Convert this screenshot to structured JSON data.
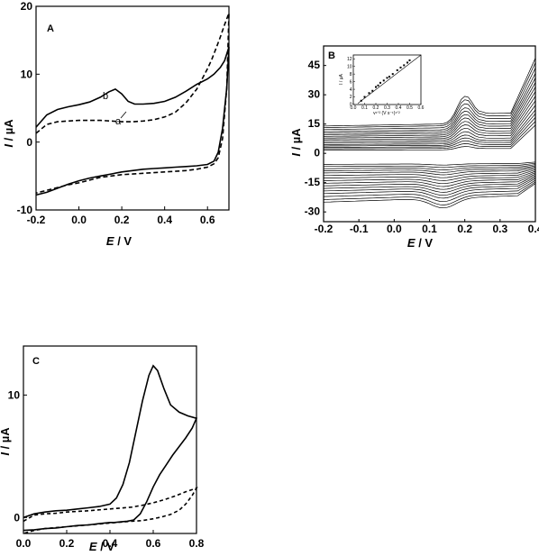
{
  "panels": [
    {
      "label": "A",
      "type": "line",
      "xlabel_pre": "E",
      "xlabel_post": " / V",
      "ylabel_pre": "I",
      "ylabel_post": " / µA",
      "xlim": [
        -0.2,
        0.7
      ],
      "ylim": [
        -10,
        20
      ],
      "x_ticks": [
        "-0.2",
        "0.0",
        "0.2",
        "0.4",
        "0.6"
      ],
      "y_ticks": [
        "-10",
        "0",
        "10",
        "20"
      ],
      "curve_labels": [
        "b",
        "a"
      ],
      "series": [
        {
          "name": "b",
          "style": "solid",
          "x": [
            -0.2,
            -0.15,
            -0.1,
            -0.05,
            0.0,
            0.05,
            0.1,
            0.14,
            0.17,
            0.2,
            0.23,
            0.26,
            0.3,
            0.35,
            0.4,
            0.45,
            0.5,
            0.55,
            0.6,
            0.63,
            0.66,
            0.68,
            0.7,
            0.7,
            0.69,
            0.67,
            0.65,
            0.63,
            0.6,
            0.55,
            0.5,
            0.45,
            0.4,
            0.35,
            0.3,
            0.25,
            0.2,
            0.15,
            0.1,
            0.05,
            0.0,
            -0.05,
            -0.1,
            -0.15,
            -0.2
          ],
          "y": [
            2.2,
            4.0,
            4.8,
            5.2,
            5.5,
            5.9,
            6.6,
            7.4,
            7.8,
            7.1,
            6.0,
            5.6,
            5.6,
            5.7,
            6.0,
            6.6,
            7.5,
            8.5,
            9.3,
            10.0,
            11.0,
            12.0,
            14.0,
            14.0,
            8.0,
            2.0,
            -1.5,
            -2.8,
            -3.3,
            -3.5,
            -3.6,
            -3.7,
            -3.8,
            -3.9,
            -4.0,
            -4.2,
            -4.4,
            -4.7,
            -5.0,
            -5.3,
            -5.7,
            -6.2,
            -6.8,
            -7.4,
            -7.8
          ]
        },
        {
          "name": "a",
          "style": "dashed",
          "x": [
            -0.2,
            -0.15,
            -0.1,
            -0.05,
            0.0,
            0.05,
            0.1,
            0.15,
            0.2,
            0.25,
            0.3,
            0.35,
            0.4,
            0.45,
            0.5,
            0.55,
            0.6,
            0.62,
            0.64,
            0.66,
            0.68,
            0.7,
            0.7,
            0.69,
            0.67,
            0.65,
            0.63,
            0.6,
            0.55,
            0.5,
            0.45,
            0.4,
            0.35,
            0.3,
            0.25,
            0.2,
            0.15,
            0.1,
            0.05,
            0.0,
            -0.05,
            -0.1,
            -0.15,
            -0.2
          ],
          "y": [
            1.3,
            2.6,
            3.0,
            3.1,
            3.2,
            3.2,
            3.2,
            3.1,
            3.0,
            3.0,
            3.1,
            3.3,
            3.7,
            4.4,
            5.8,
            7.8,
            10.8,
            12.2,
            13.8,
            15.5,
            17.3,
            19.0,
            19.0,
            8.0,
            0.5,
            -2.3,
            -3.2,
            -3.7,
            -4.0,
            -4.2,
            -4.3,
            -4.4,
            -4.5,
            -4.6,
            -4.7,
            -4.8,
            -5.0,
            -5.2,
            -5.6,
            -6.0,
            -6.3,
            -6.7,
            -7.1,
            -7.5
          ]
        }
      ]
    },
    {
      "label": "B",
      "type": "line",
      "xlabel_pre": "E",
      "xlabel_post": " / V",
      "ylabel_pre": "I",
      "ylabel_post": " / µA",
      "xlim": [
        -0.2,
        0.4
      ],
      "ylim": [
        -35,
        55
      ],
      "x_ticks": [
        "-0.2",
        "-0.1",
        "0.0",
        "0.1",
        "0.2",
        "0.3",
        "0.4"
      ],
      "y_ticks": [
        "-30",
        "-15",
        "0",
        "15",
        "30",
        "45"
      ],
      "scan_scale_factors": [
        0.12,
        0.17,
        0.22,
        0.27,
        0.32,
        0.38,
        0.44,
        0.5,
        0.56,
        0.62,
        0.68,
        0.74,
        0.8,
        0.87,
        0.94,
        1.0
      ],
      "inset": {
        "type": "scatter",
        "xlabel": "v¹ᐟ² (V s⁻¹)¹ᐟ²",
        "ylabel": "I / µA",
        "xlim": [
          0.0,
          0.6
        ],
        "ylim": [
          0,
          13
        ],
        "x_ticks": [
          "0.0",
          "0.1",
          "0.2",
          "0.3",
          "0.4",
          "0.5",
          "0.6"
        ],
        "y_ticks": [
          "0",
          "2",
          "4",
          "6",
          "8",
          "10",
          "12"
        ],
        "x": [
          0.07,
          0.1,
          0.14,
          0.17,
          0.2,
          0.22,
          0.24,
          0.27,
          0.3,
          0.32,
          0.35,
          0.39,
          0.42,
          0.45,
          0.48,
          0.5
        ],
        "y": [
          1.0,
          2.0,
          3.0,
          3.6,
          4.6,
          5.0,
          5.7,
          6.3,
          7.0,
          7.3,
          8.0,
          9.0,
          9.7,
          10.3,
          11.0,
          11.6
        ],
        "fit": [
          [
            0.04,
            0.3
          ],
          [
            0.6,
            13.0
          ]
        ]
      }
    },
    {
      "label": "C",
      "type": "line",
      "xlabel_pre": "E",
      "xlabel_post": " / V",
      "ylabel_pre": "I",
      "ylabel_post": " / µA",
      "xlim": [
        0.0,
        0.8
      ],
      "ylim": [
        -1.3,
        14.0
      ],
      "x_ticks": [
        "0.0",
        "0.2",
        "0.4",
        "0.6",
        "0.8"
      ],
      "y_ticks": [
        "0",
        "10"
      ],
      "series": [
        {
          "name": "",
          "style": "solid",
          "x": [
            0.0,
            0.05,
            0.1,
            0.15,
            0.2,
            0.25,
            0.3,
            0.35,
            0.4,
            0.43,
            0.46,
            0.49,
            0.52,
            0.55,
            0.58,
            0.6,
            0.62,
            0.65,
            0.68,
            0.72,
            0.76,
            0.8,
            0.8,
            0.78,
            0.75,
            0.72,
            0.69,
            0.66,
            0.63,
            0.6,
            0.57,
            0.54,
            0.51,
            0.48,
            0.45,
            0.42,
            0.4,
            0.35,
            0.3,
            0.25,
            0.2,
            0.15,
            0.1,
            0.05,
            0.0
          ],
          "y": [
            0.0,
            0.3,
            0.45,
            0.55,
            0.6,
            0.7,
            0.8,
            0.9,
            1.1,
            1.6,
            2.7,
            4.5,
            7.0,
            9.5,
            11.6,
            12.4,
            12.0,
            10.5,
            9.2,
            8.6,
            8.3,
            8.1,
            8.1,
            7.3,
            6.5,
            5.8,
            5.1,
            4.3,
            3.5,
            2.5,
            1.3,
            0.3,
            -0.2,
            -0.3,
            -0.35,
            -0.4,
            -0.4,
            -0.5,
            -0.6,
            -0.65,
            -0.75,
            -0.85,
            -0.9,
            -1.0,
            -1.05
          ]
        },
        {
          "name": "",
          "style": "dashed",
          "x": [
            0.0,
            0.05,
            0.1,
            0.15,
            0.2,
            0.3,
            0.4,
            0.5,
            0.55,
            0.6,
            0.65,
            0.7,
            0.75,
            0.8,
            0.8,
            0.78,
            0.75,
            0.72,
            0.68,
            0.64,
            0.6,
            0.55,
            0.5,
            0.4,
            0.3,
            0.2,
            0.1,
            0.05,
            0.0
          ],
          "y": [
            -0.3,
            0.2,
            0.3,
            0.35,
            0.45,
            0.55,
            0.7,
            0.85,
            1.0,
            1.2,
            1.45,
            1.75,
            2.1,
            2.4,
            2.4,
            1.8,
            1.1,
            0.6,
            0.25,
            0.05,
            -0.1,
            -0.25,
            -0.3,
            -0.45,
            -0.6,
            -0.75,
            -0.9,
            -1.05,
            -1.3
          ]
        }
      ]
    }
  ]
}
